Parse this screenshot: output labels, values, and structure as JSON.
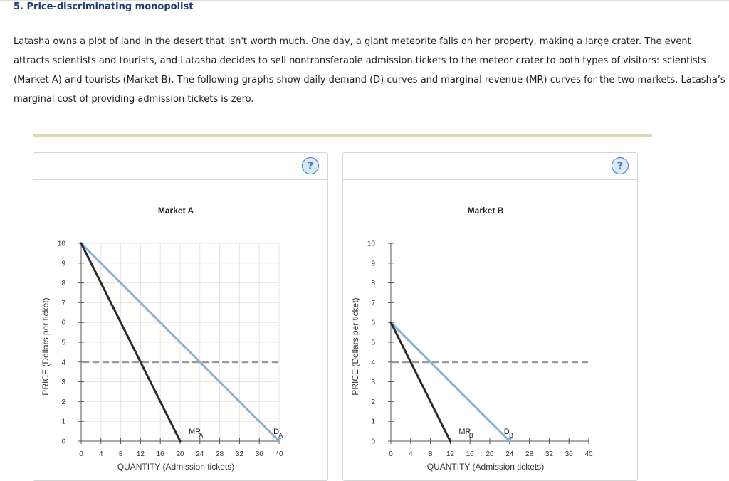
{
  "page": {
    "title": "5. Price-discriminating monopolist",
    "intro": "Latasha owns a plot of land in the desert that isn't worth much. One day, a giant meteorite falls on her property, making a large crater. The event attracts scientists and tourists, and Latasha decides to sell nontransferable admission tickets to the meteor crater to both types of visitors: scientists (Market A) and tourists (Market B). The following graphs show daily demand (D) curves and marginal revenue (MR) curves for the two markets. Latasha’s marginal cost of providing admission tickets is zero.",
    "help_label": "?"
  },
  "colors": {
    "demand": "#88b0d6",
    "mr": "#2b2b2b",
    "dashed": "#9a9a9a",
    "grid": "#e4e4e4"
  },
  "chart_data": [
    {
      "type": "line",
      "title": "Market A",
      "xlabel": "QUANTITY (Admission tickets)",
      "ylabel": "PRICE (Dollars per ticket)",
      "xlim": [
        0,
        40
      ],
      "ylim": [
        0,
        10
      ],
      "xticks": [
        0,
        4,
        8,
        12,
        16,
        20,
        24,
        28,
        32,
        36,
        40
      ],
      "yticks": [
        0,
        1,
        2,
        3,
        4,
        5,
        6,
        7,
        8,
        9,
        10
      ],
      "grid": true,
      "series": [
        {
          "name": "D",
          "sub": "A",
          "points": [
            [
              0,
              10
            ],
            [
              40,
              0
            ]
          ]
        },
        {
          "name": "MR",
          "sub": "A",
          "points": [
            [
              0,
              10
            ],
            [
              20,
              0
            ]
          ]
        }
      ],
      "reference_lines": [
        {
          "y": 4,
          "style": "dashed"
        }
      ]
    },
    {
      "type": "line",
      "title": "Market B",
      "xlabel": "QUANTITY (Admission tickets)",
      "ylabel": "PRICE (Dollars per ticket)",
      "xlim": [
        0,
        40
      ],
      "ylim": [
        0,
        10
      ],
      "xticks": [
        0,
        4,
        8,
        12,
        16,
        20,
        24,
        28,
        32,
        36,
        40
      ],
      "yticks": [
        0,
        1,
        2,
        3,
        4,
        5,
        6,
        7,
        8,
        9,
        10
      ],
      "grid": false,
      "series": [
        {
          "name": "D",
          "sub": "B",
          "points": [
            [
              0,
              6
            ],
            [
              24,
              0
            ]
          ]
        },
        {
          "name": "MR",
          "sub": "B",
          "points": [
            [
              0,
              6
            ],
            [
              12,
              0
            ]
          ]
        }
      ],
      "reference_lines": [
        {
          "y": 4,
          "style": "dashed"
        }
      ]
    }
  ]
}
